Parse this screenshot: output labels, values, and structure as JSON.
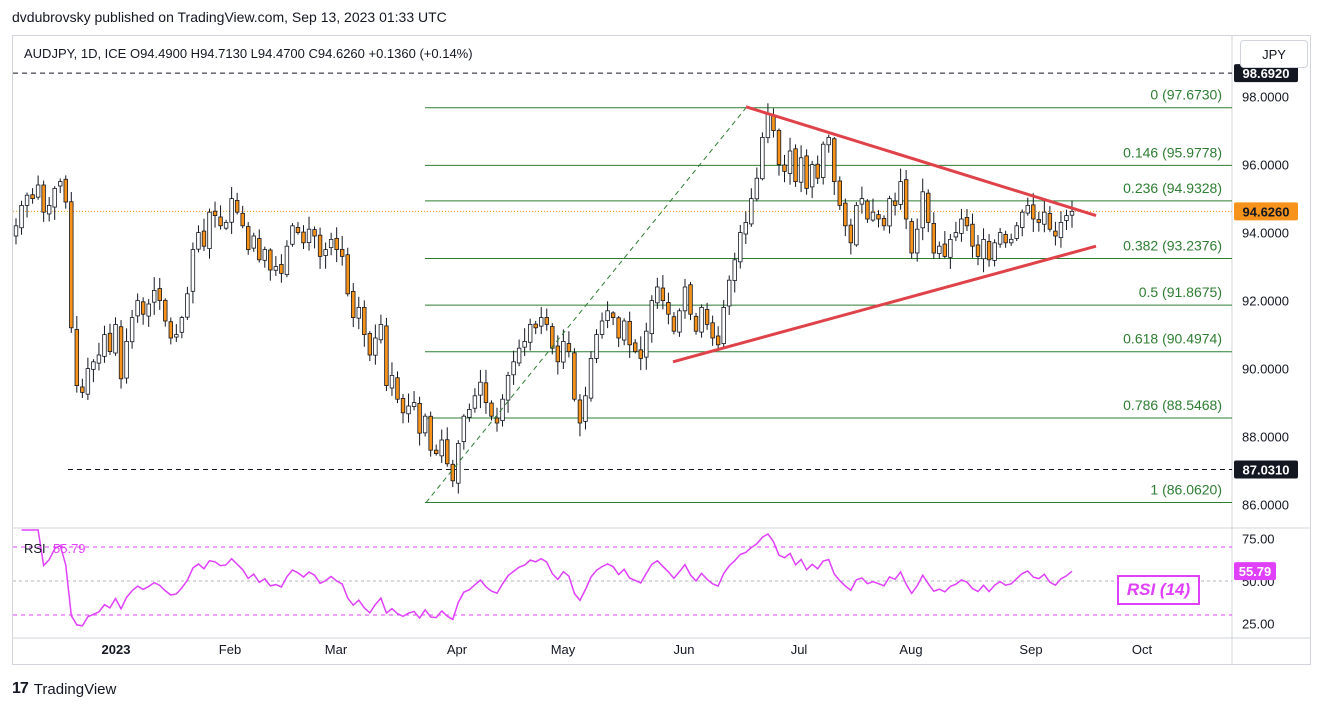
{
  "header": {
    "published": "dvdubrovsky published on TradingView.com, Sep 13, 2023 01:33 UTC",
    "symbol_line": "AUDJPY, 1D, ICE  O94.4900  H94.7130  L94.4700  C94.6260  +0.1360 (+0.14%)"
  },
  "currency_button": "JPY",
  "footer": {
    "logo_mark": "17",
    "logo_text": "TradingView"
  },
  "rsi": {
    "label": "RSI",
    "value": "55.79",
    "legend": "RSI (14)"
  },
  "colors": {
    "up": "#ffffff",
    "down": "#f7931a",
    "wick": "#131722",
    "fib": "#2e7d32",
    "triangle": "#e0424a",
    "rsi": "#e040fb",
    "price_tag": "#f7931a"
  },
  "chart_data": [
    {
      "type": "candlestick",
      "title": "AUDJPY, 1D, ICE",
      "y_axis": {
        "min": 85.5,
        "max": 99.0,
        "ticks": [
          "98.0000",
          "96.0000",
          "94.0000",
          "92.0000",
          "90.0000",
          "88.0000",
          "86.0000"
        ],
        "tick_values": [
          98,
          96,
          94,
          92,
          90,
          88,
          86
        ]
      },
      "x_axis": {
        "labels": [
          "2023",
          "Feb",
          "Mar",
          "Apr",
          "May",
          "Jun",
          "Jul",
          "Aug",
          "Sep",
          "Oct"
        ]
      },
      "fib_levels": [
        {
          "label": "0 (97.6730)",
          "value": 97.673
        },
        {
          "label": "0.146 (95.9778)",
          "value": 95.9778
        },
        {
          "label": "0.236 (94.9328)",
          "value": 94.9328
        },
        {
          "label": "0.382 (93.2376)",
          "value": 93.2376
        },
        {
          "label": "0.5 (91.8675)",
          "value": 91.8675
        },
        {
          "label": "0.618 (90.4974)",
          "value": 90.4974
        },
        {
          "label": "0.786 (88.5468)",
          "value": 88.5468
        },
        {
          "label": "1 (86.0620)",
          "value": 86.062
        }
      ],
      "price_tags": [
        {
          "label": "98.6920",
          "value": 98.692,
          "style": "dark"
        },
        {
          "label": "94.6260",
          "value": 94.626,
          "style": "current"
        },
        {
          "label": "87.0310",
          "value": 87.031,
          "style": "dark"
        }
      ],
      "closes": [
        94.2,
        94.8,
        95.1,
        95.0,
        95.4,
        94.6,
        94.8,
        95.3,
        95.5,
        94.9,
        91.2,
        89.5,
        89.3,
        90.0,
        90.2,
        90.4,
        91.0,
        90.5,
        91.3,
        89.7,
        90.8,
        91.5,
        92.0,
        91.6,
        91.9,
        92.3,
        92.0,
        91.4,
        90.9,
        91.0,
        91.5,
        92.2,
        93.5,
        94.0,
        93.6,
        94.6,
        94.5,
        94.2,
        94.3,
        95.0,
        94.6,
        94.2,
        93.5,
        93.9,
        93.2,
        93.5,
        92.9,
        93.0,
        92.8,
        93.6,
        94.2,
        94.0,
        93.7,
        94.1,
        93.9,
        93.3,
        93.5,
        93.8,
        93.5,
        93.3,
        92.2,
        91.5,
        91.8,
        91.0,
        90.4,
        90.9,
        91.3,
        89.5,
        89.8,
        89.1,
        88.7,
        88.9,
        89.0,
        88.1,
        88.6,
        87.6,
        87.5,
        87.9,
        87.2,
        86.7,
        87.8,
        88.6,
        88.8,
        89.2,
        89.6,
        89.0,
        88.6,
        88.4,
        89.1,
        89.8,
        90.2,
        90.6,
        90.8,
        91.3,
        91.2,
        91.5,
        91.3,
        90.6,
        90.2,
        90.8,
        90.5,
        89.1,
        88.4,
        89.2,
        90.3,
        91.0,
        91.4,
        91.7,
        91.5,
        90.9,
        91.4,
        90.7,
        90.5,
        90.3,
        91.1,
        92.0,
        92.4,
        92.0,
        91.6,
        91.1,
        91.7,
        92.4,
        91.6,
        91.1,
        91.8,
        91.3,
        90.9,
        90.7,
        91.8,
        92.6,
        93.2,
        94.0,
        94.3,
        95.0,
        95.6,
        96.8,
        97.5,
        97.0,
        96.0,
        95.8,
        96.4,
        95.5,
        96.2,
        95.3,
        96.0,
        95.6,
        96.6,
        96.8,
        95.5,
        94.8,
        94.2,
        93.7,
        94.8,
        95.0,
        94.4,
        94.6,
        94.4,
        94.2,
        95.0,
        94.8,
        95.5,
        94.4,
        93.4,
        94.1,
        95.2,
        94.3,
        93.4,
        93.6,
        93.3,
        93.8,
        94.0,
        94.4,
        94.2,
        93.6,
        93.3,
        93.8,
        93.2,
        93.7,
        94.0,
        93.7,
        93.8,
        94.2,
        94.6,
        94.8,
        94.4,
        94.3,
        94.6,
        94.1,
        93.9,
        94.3,
        94.5,
        94.626
      ],
      "rsi_scale": {
        "min": 25,
        "max": 75,
        "overbought": 70,
        "oversold": 30,
        "tick_labels": [
          "75.00",
          "50.00",
          "25.00"
        ]
      },
      "triangle": {
        "upper": [
          {
            "date": "Jun 19",
            "value": 97.7
          },
          {
            "date": "Sep 20",
            "value": 94.5
          }
        ],
        "lower": [
          {
            "date": "May 30",
            "value": 90.2
          },
          {
            "date": "Sep 20",
            "value": 93.6
          }
        ]
      }
    }
  ]
}
